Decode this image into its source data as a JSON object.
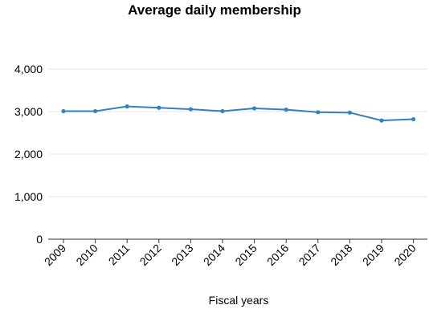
{
  "chart_data": {
    "type": "line",
    "title": "Average daily membership",
    "xlabel": "Fiscal years",
    "ylabel": "",
    "categories": [
      "2009",
      "2010",
      "2011",
      "2012",
      "2013",
      "2014",
      "2015",
      "2016",
      "2017",
      "2018",
      "2019",
      "2020"
    ],
    "series": [
      {
        "values": [
          3010,
          3010,
          3120,
          3090,
          3055,
          3010,
          3075,
          3045,
          2985,
          2975,
          2790,
          2820
        ]
      }
    ],
    "ylim": [
      0,
      4000
    ],
    "yticks": [
      0,
      1000,
      2000,
      3000,
      4000
    ],
    "ytick_labels": [
      "0",
      "1,000",
      "2,000",
      "3,000",
      "4,000"
    ],
    "grid": "horizontal",
    "legend": "none",
    "colors": {
      "line": "#3182bd",
      "grid": "#e6e6e6",
      "axis": "#333333"
    }
  }
}
